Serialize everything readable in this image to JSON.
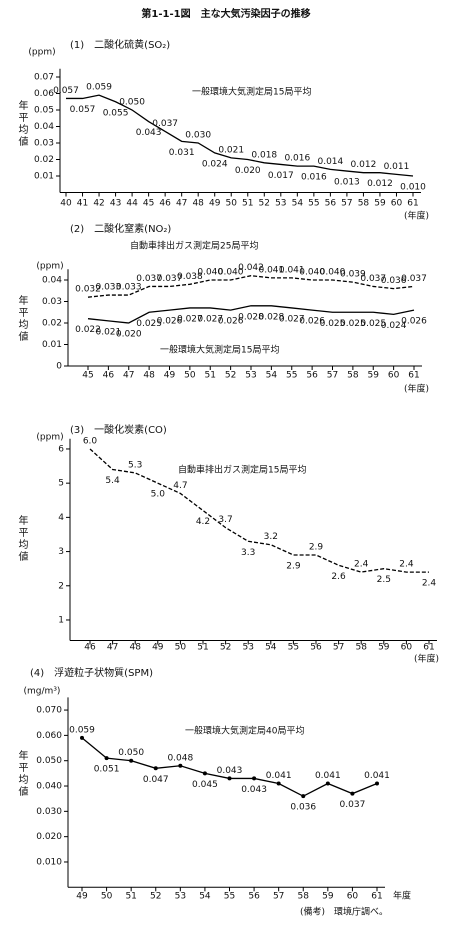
{
  "title": "第1-1-1図　主な大気汚染因子の推移",
  "note": "(備考)　環境庁調べ。",
  "chart_data": [
    {
      "type": "line",
      "title": "(1)　二酸化硫黄(SO₂)",
      "y_unit": "(ppm)",
      "ylabel": "年平均値",
      "x_unit": "(年度)",
      "categories": [
        "40",
        "41",
        "42",
        "43",
        "44",
        "45",
        "46",
        "47",
        "48",
        "49",
        "50",
        "51",
        "52",
        "53",
        "54",
        "55",
        "56",
        "57",
        "58",
        "59",
        "60",
        "61"
      ],
      "ylim": [
        0,
        0.075
      ],
      "yticks": [
        0.01,
        0.02,
        0.03,
        0.04,
        0.05,
        0.06,
        0.07
      ],
      "series": [
        {
          "name": "一般環境大気測定局15局平均",
          "color": "#000000",
          "line_style": "solid",
          "values": [
            0.057,
            0.057,
            0.059,
            0.055,
            0.05,
            0.043,
            0.037,
            0.031,
            0.03,
            0.024,
            0.021,
            0.02,
            0.018,
            0.017,
            0.016,
            0.016,
            0.014,
            0.013,
            0.012,
            0.012,
            0.011,
            0.01
          ],
          "value_labels": [
            "0.057",
            "0.057",
            "0.059",
            "0.055",
            "0.050",
            "0.043",
            "0.037",
            "0.031",
            "0.030",
            "0.024",
            "0.021",
            "0.020",
            "0.018",
            "0.017",
            "0.016",
            "0.016",
            "0.014",
            "0.013",
            "0.012",
            "0.012",
            "0.011",
            "0.010"
          ]
        }
      ]
    },
    {
      "type": "line",
      "title": "(2)　二酸化窒素(NO₂)",
      "y_unit": "(ppm)",
      "ylabel": "年平均値",
      "x_unit": "(年度)",
      "categories": [
        "45",
        "46",
        "47",
        "48",
        "49",
        "50",
        "51",
        "52",
        "53",
        "54",
        "55",
        "56",
        "57",
        "58",
        "59",
        "60",
        "61"
      ],
      "ylim": [
        0,
        0.045
      ],
      "yticks": [
        0,
        0.01,
        0.02,
        0.03,
        0.04
      ],
      "series": [
        {
          "name": "自動車排出ガス測定局25局平均",
          "color": "#000000",
          "line_style": "dashed",
          "values": [
            0.032,
            0.033,
            0.033,
            0.037,
            0.037,
            0.038,
            0.04,
            0.04,
            0.042,
            0.041,
            0.041,
            0.04,
            0.04,
            0.039,
            0.037,
            0.036,
            0.037
          ],
          "value_labels": [
            "0.032",
            "0.033",
            "0.033",
            "0.037",
            "0.037",
            "0.038",
            "0.040",
            "0.040",
            "0.042",
            "0.041",
            "0.041",
            "0.040",
            "0.040",
            "0.039",
            "0.037",
            "0.036",
            "0.037"
          ]
        },
        {
          "name": "一般環境大気測定局15局平均",
          "color": "#000000",
          "line_style": "solid",
          "values": [
            0.022,
            0.021,
            0.02,
            0.025,
            0.026,
            0.027,
            0.027,
            0.026,
            0.028,
            0.028,
            0.027,
            0.026,
            0.025,
            0.025,
            0.025,
            0.024,
            0.026
          ],
          "value_labels": [
            "0.022",
            "0.021",
            "0.020",
            "0.025",
            "0.026",
            "0.027",
            "0.027",
            "0.026",
            "0.028",
            "0.028",
            "0.027",
            "0.026",
            "0.025",
            "0.025",
            "0.025",
            "0.024",
            "0.026"
          ]
        }
      ]
    },
    {
      "type": "line",
      "title": "(3)　一酸化炭素(CO)",
      "y_unit": "(ppm)",
      "ylabel": "年平均値",
      "x_unit": "(年度)",
      "categories": [
        "46",
        "47",
        "48",
        "49",
        "50",
        "51",
        "52",
        "53",
        "54",
        "55",
        "56",
        "57",
        "58",
        "59",
        "60",
        "61"
      ],
      "ylim": [
        0.4,
        6.3
      ],
      "yticks": [
        1,
        2,
        3,
        4,
        5,
        6
      ],
      "series": [
        {
          "name": "自動車排出ガス測定局15局平均",
          "color": "#000000",
          "line_style": "dashed",
          "values": [
            6.0,
            5.4,
            5.3,
            5.0,
            4.7,
            4.2,
            3.7,
            3.3,
            3.2,
            2.9,
            2.9,
            2.6,
            2.4,
            2.5,
            2.4,
            2.4
          ],
          "value_labels": [
            "6.0",
            "5.4",
            "5.3",
            "5.0",
            "4.7",
            "4.2",
            "3.7",
            "3.3",
            "3.2",
            "2.9",
            "2.9",
            "2.6",
            "2.4",
            "2.5",
            "2.4",
            "2.4"
          ]
        }
      ]
    },
    {
      "type": "line",
      "title": "(4)　浮遊粒子状物質(SPM)",
      "y_unit": "(mg/m³)",
      "ylabel": "年平均値",
      "x_unit": "年度",
      "categories": [
        "49",
        "50",
        "51",
        "52",
        "53",
        "54",
        "55",
        "56",
        "57",
        "58",
        "59",
        "60",
        "61"
      ],
      "ylim": [
        0,
        0.075
      ],
      "yticks": [
        {
          "value": 0.01,
          "label": "0.010"
        },
        {
          "value": 0.02,
          "label": "0.020"
        },
        {
          "value": 0.03,
          "label": "0.030"
        },
        {
          "value": 0.04,
          "label": "0.040"
        },
        {
          "value": 0.05,
          "label": "0.050"
        },
        {
          "value": 0.06,
          "label": "0.060"
        },
        {
          "value": 0.07,
          "label": "0.070"
        }
      ],
      "markers": true,
      "series": [
        {
          "name": "一般環境大気測定局40局平均",
          "color": "#000000",
          "line_style": "solid",
          "values": [
            0.059,
            0.051,
            0.05,
            0.047,
            0.048,
            0.045,
            0.043,
            0.043,
            0.041,
            0.036,
            0.041,
            0.037,
            0.041
          ],
          "value_labels": [
            "0.059",
            "0.051",
            "0.050",
            "0.047",
            "0.048",
            "0.045",
            "0.043",
            "0.043",
            "0.041",
            "0.036",
            "0.041",
            "0.037",
            "0.041"
          ]
        }
      ]
    }
  ]
}
